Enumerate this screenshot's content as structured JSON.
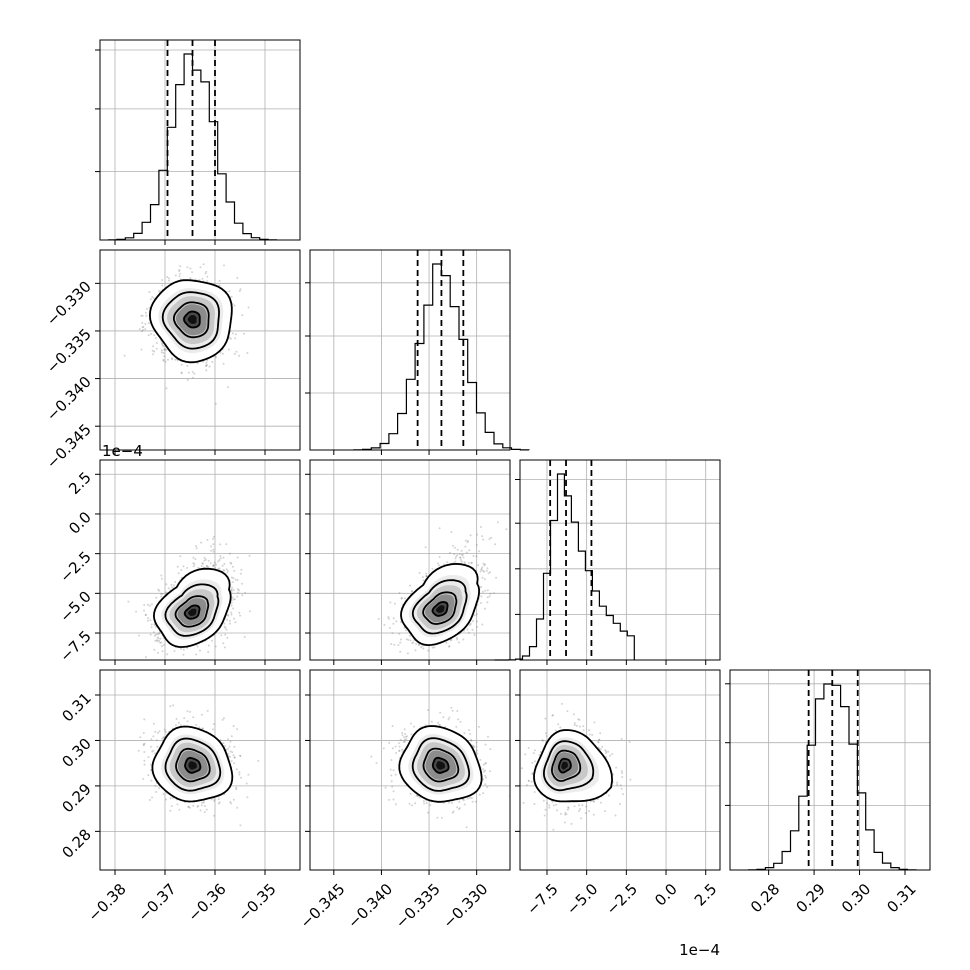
{
  "chart_data": {
    "type": "corner",
    "colors": {
      "line": "#000000",
      "scatter": "#808080",
      "grid": "#b0b0b0",
      "density_dark": "#000000",
      "density_light": "#f0f0f0"
    },
    "grid": true,
    "parameters": [
      {
        "range": [
          -0.383,
          -0.343
        ],
        "ticks": [
          -0.38,
          -0.37,
          -0.36,
          -0.35
        ],
        "tick_labels": [
          "−0.38",
          "−0.37",
          "−0.36",
          "−0.35"
        ],
        "offset_label": "",
        "mean": -0.3645,
        "sigma": 0.0042,
        "quantiles": [
          -0.3695,
          -0.3645,
          -0.36
        ]
      },
      {
        "range": [
          -0.3475,
          -0.3265
        ],
        "ticks": [
          -0.345,
          -0.34,
          -0.335,
          -0.33
        ],
        "tick_labels": [
          "−0.345",
          "−0.340",
          "−0.335",
          "−0.330"
        ],
        "offset_label": "",
        "mean": -0.3337,
        "sigma": 0.0023,
        "quantiles": [
          -0.3362,
          -0.3337,
          -0.3314
        ]
      },
      {
        "range": [
          -9.2,
          3.4
        ],
        "ticks": [
          -7.5,
          -5.0,
          -2.5,
          0.0,
          2.5
        ],
        "tick_labels": [
          "−7.5",
          "−5.0",
          "−2.5",
          "0.0",
          "2.5"
        ],
        "offset_label": "1e−4",
        "mean": -6.4,
        "sigma": 1.1,
        "quantiles": [
          -7.3,
          -6.3,
          -4.7
        ]
      },
      {
        "range": [
          0.2715,
          0.3155
        ],
        "ticks": [
          0.28,
          0.29,
          0.3,
          0.31
        ],
        "tick_labels": [
          "0.28",
          "0.29",
          "0.30",
          "0.31"
        ],
        "offset_label": "",
        "mean": 0.294,
        "sigma": 0.0046,
        "quantiles": [
          0.2888,
          0.294,
          0.2996
        ]
      }
    ],
    "diagonal_hist_ticks": {
      "0": [
        0.36,
        0.69,
        1.0
      ],
      "1": [
        0.3,
        0.6,
        0.88
      ],
      "2": [
        0.24,
        0.48,
        0.72,
        0.95
      ],
      "3": [
        0.34,
        0.67,
        0.98
      ]
    },
    "pairs": [
      {
        "row": 1,
        "col": 0,
        "center": [
          -0.3645,
          -0.3338
        ],
        "contour_scale": [
          0.0055,
          0.003
        ],
        "rotation_deg": 35
      },
      {
        "row": 2,
        "col": 0,
        "center": [
          -0.3645,
          -6.2
        ],
        "contour_scale": [
          0.0055,
          1.3
        ],
        "rotation_deg": 32,
        "skew": "upper-right"
      },
      {
        "row": 2,
        "col": 1,
        "center": [
          -0.3338,
          -6.0
        ],
        "contour_scale": [
          0.003,
          1.3
        ],
        "rotation_deg": 35,
        "skew": "upper-right"
      },
      {
        "row": 3,
        "col": 0,
        "center": [
          -0.3645,
          0.2945
        ],
        "contour_scale": [
          0.0055,
          0.0055
        ],
        "rotation_deg": -30
      },
      {
        "row": 3,
        "col": 1,
        "center": [
          -0.3338,
          0.2945
        ],
        "contour_scale": [
          0.003,
          0.0055
        ],
        "rotation_deg": -30
      },
      {
        "row": 3,
        "col": 2,
        "center": [
          -6.4,
          0.2945
        ],
        "contour_scale": [
          1.2,
          0.0055
        ],
        "rotation_deg": -25,
        "skew": "right"
      }
    ]
  }
}
